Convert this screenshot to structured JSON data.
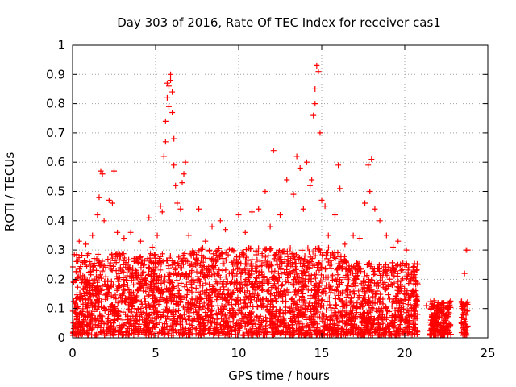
{
  "chart_data": {
    "type": "scatter",
    "title": "Day 303 of 2016, Rate Of TEC Index for receiver cas1",
    "xlabel": "GPS time / hours",
    "ylabel": "ROTI / TECUs",
    "xlim": [
      0,
      25
    ],
    "ylim": [
      0,
      1
    ],
    "xticks": [
      0,
      5,
      10,
      15,
      20,
      25
    ],
    "yticks": [
      0,
      0.1,
      0.2,
      0.3,
      0.4,
      0.5,
      0.6,
      0.7,
      0.8,
      0.9,
      1
    ],
    "x_tick_labels": [
      "0",
      "5",
      "10",
      "15",
      "20",
      "25"
    ],
    "y_tick_labels": [
      "0",
      "0.1",
      "0.2",
      "0.3",
      "0.4",
      "0.5",
      "0.6",
      "0.7",
      "0.8",
      "0.9",
      "1"
    ],
    "grid": true,
    "marker": "+",
    "color": "#ff0000",
    "dense_band": {
      "description_values": "bulk of samples between 0.0 and ~0.3 TECU over 0-21 h, with sparse points near 22-24 h",
      "segments": [
        {
          "x": [
            0.0,
            7.2
          ],
          "typical_max": 0.28
        },
        {
          "x": [
            7.2,
            16.5
          ],
          "typical_max": 0.3
        },
        {
          "x": [
            16.5,
            20.8
          ],
          "typical_max": 0.25
        },
        {
          "x": [
            21.5,
            22.8
          ],
          "typical_max": 0.12
        },
        {
          "x": [
            23.4,
            23.8
          ],
          "typical_max": 0.12
        }
      ]
    },
    "series": [
      {
        "name": "ROTI samples (cas1)",
        "points": [
          [
            0.4,
            0.33
          ],
          [
            0.8,
            0.32
          ],
          [
            1.2,
            0.35
          ],
          [
            1.5,
            0.42
          ],
          [
            1.6,
            0.48
          ],
          [
            1.7,
            0.57
          ],
          [
            1.8,
            0.56
          ],
          [
            1.9,
            0.4
          ],
          [
            2.2,
            0.47
          ],
          [
            2.4,
            0.46
          ],
          [
            2.5,
            0.57
          ],
          [
            2.7,
            0.36
          ],
          [
            3.1,
            0.34
          ],
          [
            3.5,
            0.36
          ],
          [
            4.1,
            0.33
          ],
          [
            4.6,
            0.41
          ],
          [
            4.8,
            0.31
          ],
          [
            5.1,
            0.35
          ],
          [
            5.3,
            0.45
          ],
          [
            5.4,
            0.43
          ],
          [
            5.5,
            0.62
          ],
          [
            5.6,
            0.67
          ],
          [
            5.6,
            0.74
          ],
          [
            5.7,
            0.82
          ],
          [
            5.7,
            0.87
          ],
          [
            5.8,
            0.86
          ],
          [
            5.8,
            0.79
          ],
          [
            5.9,
            0.9
          ],
          [
            5.9,
            0.88
          ],
          [
            6.0,
            0.84
          ],
          [
            6.0,
            0.77
          ],
          [
            6.1,
            0.68
          ],
          [
            6.1,
            0.59
          ],
          [
            6.2,
            0.52
          ],
          [
            6.3,
            0.46
          ],
          [
            6.5,
            0.44
          ],
          [
            6.6,
            0.53
          ],
          [
            6.7,
            0.56
          ],
          [
            6.8,
            0.6
          ],
          [
            7.0,
            0.35
          ],
          [
            7.6,
            0.44
          ],
          [
            8.0,
            0.33
          ],
          [
            8.4,
            0.38
          ],
          [
            8.9,
            0.4
          ],
          [
            9.2,
            0.37
          ],
          [
            9.6,
            0.3
          ],
          [
            10.0,
            0.42
          ],
          [
            10.4,
            0.36
          ],
          [
            10.8,
            0.43
          ],
          [
            11.2,
            0.44
          ],
          [
            11.6,
            0.5
          ],
          [
            11.9,
            0.38
          ],
          [
            12.1,
            0.64
          ],
          [
            12.5,
            0.42
          ],
          [
            12.9,
            0.54
          ],
          [
            13.3,
            0.49
          ],
          [
            13.5,
            0.62
          ],
          [
            13.7,
            0.58
          ],
          [
            13.9,
            0.44
          ],
          [
            14.1,
            0.6
          ],
          [
            14.3,
            0.52
          ],
          [
            14.4,
            0.54
          ],
          [
            14.5,
            0.76
          ],
          [
            14.6,
            0.85
          ],
          [
            14.6,
            0.8
          ],
          [
            14.7,
            0.93
          ],
          [
            14.8,
            0.91
          ],
          [
            14.9,
            0.7
          ],
          [
            15.0,
            0.47
          ],
          [
            15.2,
            0.45
          ],
          [
            15.4,
            0.35
          ],
          [
            15.8,
            0.42
          ],
          [
            16.0,
            0.59
          ],
          [
            16.1,
            0.51
          ],
          [
            16.4,
            0.32
          ],
          [
            16.9,
            0.35
          ],
          [
            17.3,
            0.34
          ],
          [
            17.6,
            0.46
          ],
          [
            17.8,
            0.59
          ],
          [
            17.9,
            0.5
          ],
          [
            18.0,
            0.61
          ],
          [
            18.2,
            0.44
          ],
          [
            18.5,
            0.4
          ],
          [
            18.9,
            0.35
          ],
          [
            19.3,
            0.31
          ],
          [
            19.6,
            0.33
          ],
          [
            20.1,
            0.3
          ],
          [
            20.5,
            0.24
          ],
          [
            21.3,
            0.11
          ],
          [
            22.0,
            0.12
          ],
          [
            22.6,
            0.1
          ],
          [
            23.6,
            0.22
          ],
          [
            23.7,
            0.3
          ],
          [
            23.8,
            0.3
          ]
        ]
      }
    ]
  }
}
